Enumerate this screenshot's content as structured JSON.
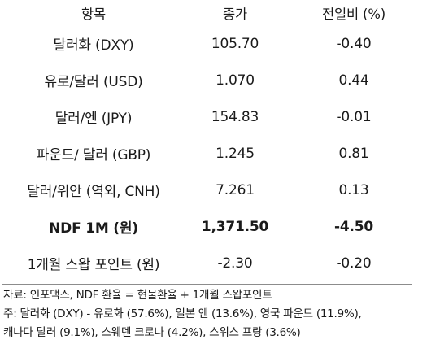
{
  "table": {
    "headers": [
      "항목",
      "종가",
      "전일비 (%)"
    ],
    "rows": [
      {
        "item": "달러화 (DXY)",
        "close": "105.70",
        "change": "-0.40",
        "bold": false
      },
      {
        "item": "유로/달러 (USD)",
        "close": "1.070",
        "change": "0.44",
        "bold": false
      },
      {
        "item": "달러/엔 (JPY)",
        "close": "154.83",
        "change": "-0.01",
        "bold": false
      },
      {
        "item": "파운드/ 달러 (GBP)",
        "close": "1.245",
        "change": "0.81",
        "bold": false
      },
      {
        "item": "달러/위안 (역외, CNH)",
        "close": "7.261",
        "change": "0.13",
        "bold": false
      },
      {
        "item": "NDF 1M (원)",
        "close": "1,371.50",
        "change": "-4.50",
        "bold": true
      },
      {
        "item": "1개월 스왑 포인트 (원)",
        "close": "-2.30",
        "change": "-0.20",
        "bold": false
      }
    ]
  },
  "notes": {
    "line1": "자료: 인포맥스, NDF 환율 = 현물환율 + 1개월 스왑포인트",
    "line2": "주: 달러화 (DXY) - 유로화 (57.6%), 일본 엔 (13.6%), 영국 파운드 (11.9%),",
    "line3": "캐나다 달러 (9.1%), 스웨덴 크로나 (4.2%), 스위스 프랑 (3.6%)"
  }
}
